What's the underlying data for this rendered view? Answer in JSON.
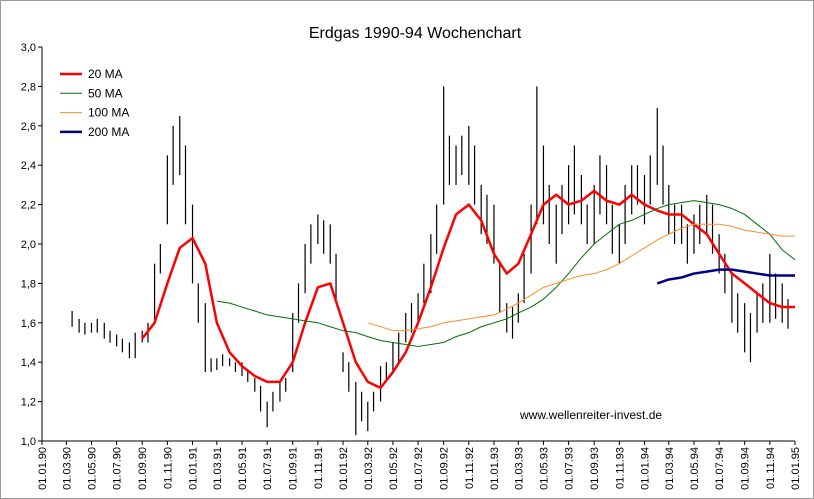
{
  "chart_data": {
    "type": "line",
    "title": "Erdgas 1990-94 Wochenchart",
    "watermark": "www.wellenreiter-invest.de",
    "xlim": [
      "01.01.90",
      "01.01.95"
    ],
    "xticks": [
      "01.01.90",
      "01.03.90",
      "01.05.90",
      "01.07.90",
      "01.09.90",
      "01.11.90",
      "01.01.91",
      "01.03.91",
      "01.05.91",
      "01.07.91",
      "01.09.91",
      "01.11.91",
      "01.01.92",
      "01.03.92",
      "01.05.92",
      "01.07.92",
      "01.09.92",
      "01.11.92",
      "01.01.93",
      "01.03.93",
      "01.05.93",
      "01.07.93",
      "01.09.93",
      "01.11.93",
      "01.01.94",
      "01.03.94",
      "01.05.94",
      "01.07.94",
      "01.09.94",
      "01.11.94",
      "01.01.95"
    ],
    "ylim": [
      1,
      3
    ],
    "yticks": [
      {
        "value": 1,
        "label": "1,0"
      },
      {
        "value": 1.2,
        "label": "1,2"
      },
      {
        "value": 1.4,
        "label": "1,4"
      },
      {
        "value": 1.6,
        "label": "1,6"
      },
      {
        "value": 1.8,
        "label": "1,8"
      },
      {
        "value": 2,
        "label": "2,0"
      },
      {
        "value": 2.2,
        "label": "2,2"
      },
      {
        "value": 2.4,
        "label": "2,4"
      },
      {
        "value": 2.6,
        "label": "2,6"
      },
      {
        "value": 2.8,
        "label": "2,8"
      },
      {
        "value": 3,
        "label": "3,0"
      }
    ],
    "legend": "top-left",
    "price": {
      "color": "#000000",
      "x": [
        "15.03.90",
        "01.04.90",
        "15.04.90",
        "01.05.90",
        "15.05.90",
        "01.06.90",
        "15.06.90",
        "01.07.90",
        "15.07.90",
        "01.08.90",
        "15.08.90",
        "01.09.90",
        "15.09.90",
        "01.10.90",
        "15.10.90",
        "01.11.90",
        "15.11.90",
        "01.12.90",
        "15.12.90",
        "01.01.91",
        "15.01.91",
        "01.02.91",
        "15.02.91",
        "01.03.91",
        "15.03.91",
        "01.04.91",
        "15.04.91",
        "01.05.91",
        "15.05.91",
        "01.06.91",
        "15.06.91",
        "01.07.91",
        "15.07.91",
        "01.08.91",
        "15.08.91",
        "01.09.91",
        "15.09.91",
        "01.10.91",
        "15.10.91",
        "01.11.91",
        "15.11.91",
        "01.12.91",
        "15.12.91",
        "01.01.92",
        "15.01.92",
        "01.02.92",
        "15.02.92",
        "01.03.92",
        "15.03.92",
        "01.04.92",
        "15.04.92",
        "01.05.92",
        "15.05.92",
        "01.06.92",
        "15.06.92",
        "01.07.92",
        "15.07.92",
        "01.08.92",
        "15.08.92",
        "01.09.92",
        "15.09.92",
        "01.10.92",
        "15.10.92",
        "01.11.92",
        "15.11.92",
        "01.12.92",
        "15.12.92",
        "01.01.93",
        "15.01.93",
        "01.02.93",
        "15.02.93",
        "01.03.93",
        "15.03.93",
        "01.04.93",
        "15.04.93",
        "01.05.93",
        "15.05.93",
        "01.06.93",
        "15.06.93",
        "01.07.93",
        "15.07.93",
        "01.08.93",
        "15.08.93",
        "01.09.93",
        "15.09.93",
        "01.10.93",
        "15.10.93",
        "01.11.93",
        "15.11.93",
        "01.12.93",
        "15.12.93",
        "01.01.94",
        "15.01.94",
        "01.02.94",
        "15.02.94",
        "01.03.94",
        "15.03.94",
        "01.04.94",
        "15.04.94",
        "01.05.94",
        "15.05.94",
        "01.06.94",
        "15.06.94",
        "01.07.94",
        "15.07.94",
        "01.08.94",
        "15.08.94",
        "01.09.94",
        "15.09.94",
        "01.10.94",
        "15.10.94",
        "01.11.94",
        "15.11.94",
        "01.12.94",
        "15.12.94"
      ],
      "low": [
        1.58,
        1.55,
        1.54,
        1.55,
        1.55,
        1.52,
        1.5,
        1.48,
        1.45,
        1.42,
        1.42,
        1.5,
        1.5,
        1.6,
        1.85,
        2.1,
        2.3,
        2.35,
        2.1,
        1.8,
        1.6,
        1.35,
        1.35,
        1.36,
        1.38,
        1.38,
        1.35,
        1.33,
        1.3,
        1.25,
        1.15,
        1.07,
        1.15,
        1.2,
        1.25,
        1.35,
        1.6,
        1.75,
        1.9,
        2.0,
        1.95,
        1.9,
        1.7,
        1.35,
        1.25,
        1.03,
        1.1,
        1.05,
        1.15,
        1.2,
        1.3,
        1.35,
        1.4,
        1.5,
        1.55,
        1.6,
        1.7,
        1.75,
        1.95,
        2.2,
        2.3,
        2.3,
        2.35,
        2.3,
        2.2,
        2.05,
        2.0,
        1.9,
        1.65,
        1.55,
        1.52,
        1.6,
        1.7,
        1.85,
        2.1,
        2.1,
        2.0,
        1.9,
        2.05,
        2.1,
        2.15,
        2.1,
        2.0,
        2.0,
        2.15,
        2.1,
        1.95,
        1.9,
        2.0,
        2.15,
        2.2,
        2.1,
        2.2,
        2.3,
        2.2,
        2.05,
        2.0,
        2.0,
        1.9,
        1.95,
        2.0,
        2.05,
        1.95,
        1.85,
        1.75,
        1.6,
        1.55,
        1.45,
        1.4,
        1.55,
        1.6,
        1.6,
        1.62,
        1.6,
        1.57
      ],
      "high": [
        1.66,
        1.62,
        1.6,
        1.6,
        1.62,
        1.6,
        1.56,
        1.54,
        1.52,
        1.5,
        1.55,
        1.56,
        1.6,
        1.9,
        2.0,
        2.45,
        2.6,
        2.65,
        2.5,
        2.2,
        1.8,
        1.7,
        1.42,
        1.42,
        1.44,
        1.42,
        1.4,
        1.4,
        1.36,
        1.32,
        1.28,
        1.2,
        1.25,
        1.3,
        1.32,
        1.65,
        1.8,
        2.0,
        2.1,
        2.15,
        2.12,
        2.1,
        1.95,
        1.45,
        1.4,
        1.3,
        1.25,
        1.2,
        1.25,
        1.38,
        1.4,
        1.5,
        1.55,
        1.65,
        1.7,
        1.75,
        1.9,
        2.05,
        2.2,
        2.8,
        2.55,
        2.5,
        2.55,
        2.6,
        2.5,
        2.3,
        2.25,
        2.2,
        1.9,
        1.7,
        1.68,
        1.75,
        1.95,
        2.2,
        2.8,
        2.5,
        2.3,
        2.2,
        2.3,
        2.4,
        2.5,
        2.35,
        2.2,
        2.3,
        2.45,
        2.4,
        2.2,
        2.1,
        2.3,
        2.4,
        2.4,
        2.35,
        2.45,
        2.69,
        2.5,
        2.3,
        2.2,
        2.2,
        2.1,
        2.15,
        2.2,
        2.25,
        2.2,
        2.05,
        1.95,
        1.85,
        1.75,
        1.7,
        1.65,
        1.75,
        1.8,
        1.95,
        1.85,
        1.8,
        1.72
      ]
    },
    "series": [
      {
        "name": "20 MA",
        "color": "#ff0000",
        "width": 2.5,
        "x": [
          "01.09.90",
          "01.10.90",
          "01.11.90",
          "01.12.90",
          "01.01.91",
          "01.02.91",
          "01.03.91",
          "01.04.91",
          "01.05.91",
          "01.06.91",
          "01.07.91",
          "01.08.91",
          "01.09.91",
          "01.10.91",
          "01.11.91",
          "01.12.91",
          "01.01.92",
          "01.02.92",
          "01.03.92",
          "01.04.92",
          "01.05.92",
          "01.06.92",
          "01.07.92",
          "01.08.92",
          "01.09.92",
          "01.10.92",
          "01.11.92",
          "01.12.92",
          "01.01.93",
          "01.02.93",
          "01.03.93",
          "01.04.93",
          "01.05.93",
          "01.06.93",
          "01.07.93",
          "01.08.93",
          "01.09.93",
          "01.10.93",
          "01.11.93",
          "01.12.93",
          "01.01.94",
          "01.02.94",
          "01.03.94",
          "01.04.94",
          "01.05.94",
          "01.06.94",
          "01.07.94",
          "01.08.94",
          "01.09.94",
          "01.10.94",
          "01.11.94",
          "01.12.94",
          "01.01.95"
        ],
        "values": [
          1.52,
          1.6,
          1.8,
          1.98,
          2.03,
          1.9,
          1.6,
          1.45,
          1.38,
          1.33,
          1.3,
          1.3,
          1.4,
          1.6,
          1.78,
          1.8,
          1.6,
          1.4,
          1.3,
          1.27,
          1.35,
          1.45,
          1.6,
          1.78,
          1.98,
          2.15,
          2.2,
          2.12,
          1.95,
          1.85,
          1.9,
          2.05,
          2.2,
          2.25,
          2.2,
          2.22,
          2.27,
          2.22,
          2.2,
          2.25,
          2.2,
          2.17,
          2.15,
          2.15,
          2.1,
          2.05,
          1.95,
          1.85,
          1.8,
          1.75,
          1.7,
          1.68,
          1.68
        ]
      },
      {
        "name": "50 MA",
        "color": "#007000",
        "width": 1,
        "x": [
          "01.03.91",
          "01.04.91",
          "01.05.91",
          "01.06.91",
          "01.07.91",
          "01.08.91",
          "01.09.91",
          "01.10.91",
          "01.11.91",
          "01.12.91",
          "01.01.92",
          "01.02.92",
          "01.03.92",
          "01.04.92",
          "01.05.92",
          "01.06.92",
          "01.07.92",
          "01.08.92",
          "01.09.92",
          "01.10.92",
          "01.11.92",
          "01.12.92",
          "01.01.93",
          "01.02.93",
          "01.03.93",
          "01.04.93",
          "01.05.93",
          "01.06.93",
          "01.07.93",
          "01.08.93",
          "01.09.93",
          "01.10.93",
          "01.11.93",
          "01.12.93",
          "01.01.94",
          "01.02.94",
          "01.03.94",
          "01.04.94",
          "01.05.94",
          "01.06.94",
          "01.07.94",
          "01.08.94",
          "01.09.94",
          "01.10.94",
          "01.11.94",
          "01.12.94",
          "01.01.95"
        ],
        "values": [
          1.71,
          1.7,
          1.68,
          1.66,
          1.64,
          1.63,
          1.62,
          1.61,
          1.6,
          1.58,
          1.56,
          1.55,
          1.53,
          1.51,
          1.5,
          1.49,
          1.48,
          1.49,
          1.5,
          1.53,
          1.55,
          1.58,
          1.6,
          1.62,
          1.65,
          1.68,
          1.72,
          1.78,
          1.85,
          1.93,
          2.0,
          2.05,
          2.1,
          2.12,
          2.15,
          2.18,
          2.2,
          2.21,
          2.22,
          2.21,
          2.2,
          2.18,
          2.15,
          2.1,
          2.05,
          1.97,
          1.92
        ]
      },
      {
        "name": "100 MA",
        "color": "#ff8c28",
        "width": 1,
        "x": [
          "01.03.92",
          "01.04.92",
          "01.05.92",
          "01.06.92",
          "01.07.92",
          "01.08.92",
          "01.09.92",
          "01.10.92",
          "01.11.92",
          "01.12.92",
          "01.01.93",
          "01.02.93",
          "01.03.93",
          "01.04.93",
          "01.05.93",
          "01.06.93",
          "01.07.93",
          "01.08.93",
          "01.09.93",
          "01.10.93",
          "01.11.93",
          "01.12.93",
          "01.01.94",
          "01.02.94",
          "01.03.94",
          "01.04.94",
          "01.05.94",
          "01.06.94",
          "01.07.94",
          "01.08.94",
          "01.09.94",
          "01.10.94",
          "01.11.94",
          "01.12.94",
          "01.01.95"
        ],
        "values": [
          1.6,
          1.58,
          1.56,
          1.56,
          1.57,
          1.58,
          1.6,
          1.61,
          1.62,
          1.63,
          1.64,
          1.67,
          1.7,
          1.74,
          1.78,
          1.8,
          1.82,
          1.84,
          1.85,
          1.87,
          1.9,
          1.94,
          1.98,
          2.02,
          2.05,
          2.08,
          2.1,
          2.1,
          2.1,
          2.09,
          2.07,
          2.06,
          2.05,
          2.04,
          2.04
        ]
      },
      {
        "name": "200 MA",
        "color": "#000080",
        "width": 2.5,
        "x": [
          "01.02.94",
          "01.03.94",
          "01.04.94",
          "01.05.94",
          "01.06.94",
          "01.07.94",
          "01.08.94",
          "01.09.94",
          "01.10.94",
          "01.11.94",
          "01.12.94",
          "01.01.95"
        ],
        "values": [
          1.8,
          1.82,
          1.83,
          1.85,
          1.86,
          1.87,
          1.87,
          1.86,
          1.85,
          1.84,
          1.84,
          1.84
        ]
      }
    ]
  }
}
